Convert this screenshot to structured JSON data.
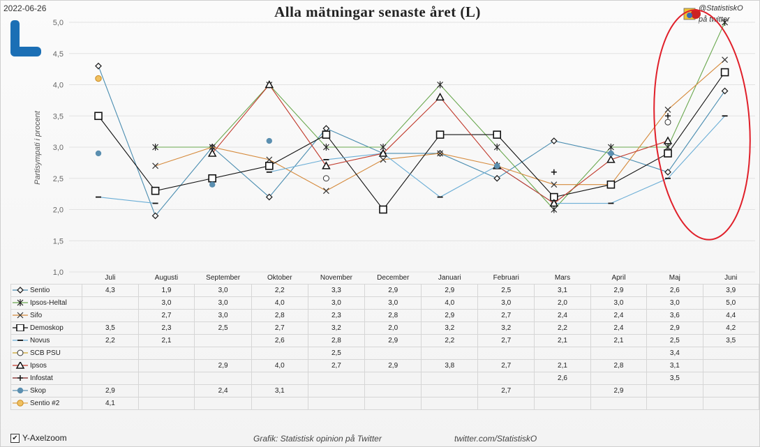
{
  "date": "2022-06-26",
  "title": "Alla mätningar senaste året (L)",
  "handle": "@StatistiskO",
  "handle_sub": "på twitter",
  "footer_credit": "Grafik: Statistisk opinion på Twitter",
  "footer_url": "twitter.com/StatistiskO",
  "zoom_label": "Y-Axelzoom",
  "zoom_checked": "✔",
  "colors": {
    "highlight": "#e0202a",
    "logo": "#1b6fb5"
  },
  "chart_data": {
    "type": "line",
    "title": "Alla mätningar senaste året (L)",
    "ylabel": "Partisympati i procent",
    "ylim": [
      1.0,
      5.0
    ],
    "yticks": [
      "1,0",
      "1,5",
      "2,0",
      "2,5",
      "3,0",
      "3,5",
      "4,0",
      "4,5",
      "5,0"
    ],
    "grid": true,
    "categories": [
      "Juli",
      "Augusti",
      "September",
      "Oktober",
      "November",
      "December",
      "Januari",
      "Februari",
      "Mars",
      "April",
      "Maj",
      "Juni"
    ],
    "series": [
      {
        "name": "Sentio",
        "color": "#4a8db0",
        "marker": "diamond",
        "values": [
          4.3,
          1.9,
          3.0,
          2.2,
          3.3,
          2.9,
          2.9,
          2.5,
          3.1,
          2.9,
          2.6,
          3.9
        ],
        "labels": [
          "4,3",
          "1,9",
          "3,0",
          "2,2",
          "3,3",
          "2,9",
          "2,9",
          "2,5",
          "3,1",
          "2,9",
          "2,6",
          "3,9"
        ]
      },
      {
        "name": "Ipsos-Heltal",
        "color": "#6aa84f",
        "marker": "star",
        "values": [
          null,
          3.0,
          3.0,
          4.0,
          3.0,
          3.0,
          4.0,
          3.0,
          2.0,
          3.0,
          3.0,
          5.0
        ],
        "labels": [
          "",
          "3,0",
          "3,0",
          "4,0",
          "3,0",
          "3,0",
          "4,0",
          "3,0",
          "2,0",
          "3,0",
          "3,0",
          "5,0"
        ]
      },
      {
        "name": "Sifo",
        "color": "#d58a3c",
        "marker": "x",
        "values": [
          null,
          2.7,
          3.0,
          2.8,
          2.3,
          2.8,
          2.9,
          2.7,
          2.4,
          2.4,
          3.6,
          4.4
        ],
        "labels": [
          "",
          "2,7",
          "3,0",
          "2,8",
          "2,3",
          "2,8",
          "2,9",
          "2,7",
          "2,4",
          "2,4",
          "3,6",
          "4,4"
        ]
      },
      {
        "name": "Demoskop",
        "color": "#111111",
        "marker": "square",
        "values": [
          3.5,
          2.3,
          2.5,
          2.7,
          3.2,
          2.0,
          3.2,
          3.2,
          2.2,
          2.4,
          2.9,
          4.2
        ],
        "labels": [
          "3,5",
          "2,3",
          "2,5",
          "2,7",
          "3,2",
          "2,0",
          "3,2",
          "3,2",
          "2,2",
          "2,4",
          "2,9",
          "4,2"
        ]
      },
      {
        "name": "Novus",
        "color": "#6baed6",
        "marker": "dash",
        "values": [
          2.2,
          2.1,
          null,
          2.6,
          2.8,
          2.9,
          2.2,
          2.7,
          2.1,
          2.1,
          2.5,
          3.5
        ],
        "labels": [
          "2,2",
          "2,1",
          "",
          "2,6",
          "2,8",
          "2,9",
          "2,2",
          "2,7",
          "2,1",
          "2,1",
          "2,5",
          "3,5"
        ]
      },
      {
        "name": "SCB PSU",
        "color": "#c9a227",
        "marker": "circle-open",
        "values": [
          null,
          null,
          null,
          null,
          2.5,
          null,
          null,
          null,
          null,
          null,
          3.4,
          null
        ],
        "labels": [
          "",
          "",
          "",
          "",
          "2,5",
          "",
          "",
          "",
          "",
          "",
          "3,4",
          ""
        ]
      },
      {
        "name": "Ipsos",
        "color": "#c0392b",
        "marker": "triangle",
        "values": [
          null,
          null,
          2.9,
          4.0,
          2.7,
          2.9,
          3.8,
          2.7,
          2.1,
          2.8,
          3.1,
          null
        ],
        "labels": [
          "",
          "",
          "2,9",
          "4,0",
          "2,7",
          "2,9",
          "3,8",
          "2,7",
          "2,1",
          "2,8",
          "3,1",
          ""
        ]
      },
      {
        "name": "Infostat",
        "color": "#7a1f1f",
        "marker": "plus",
        "values": [
          null,
          null,
          null,
          null,
          null,
          null,
          null,
          null,
          2.6,
          null,
          3.5,
          null
        ],
        "labels": [
          "",
          "",
          "",
          "",
          "",
          "",
          "",
          "",
          "2,6",
          "",
          "3,5",
          ""
        ]
      },
      {
        "name": "Skop",
        "color": "#5b8fb0",
        "marker": "dot",
        "values": [
          2.9,
          null,
          2.4,
          3.1,
          null,
          null,
          null,
          2.7,
          null,
          2.9,
          null,
          null
        ],
        "labels": [
          "2,9",
          "",
          "2,4",
          "3,1",
          "",
          "",
          "",
          "2,7",
          "",
          "2,9",
          "",
          ""
        ]
      },
      {
        "name": "Sentio #2",
        "color": "#e0a040",
        "marker": "circle-fill",
        "values": [
          4.1,
          null,
          null,
          null,
          null,
          null,
          null,
          null,
          null,
          null,
          null,
          null
        ],
        "labels": [
          "4,1",
          "",
          "",
          "",
          "",
          "",
          "",
          "",
          "",
          "",
          "",
          ""
        ]
      }
    ]
  }
}
